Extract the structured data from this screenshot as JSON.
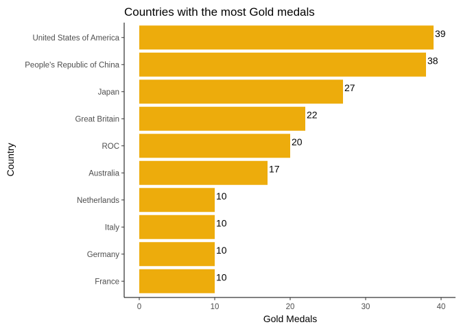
{
  "chart_data": {
    "type": "bar",
    "orientation": "horizontal",
    "title": "Countries with the most Gold medals",
    "xlabel": "Gold Medals",
    "ylabel": "Country",
    "categories": [
      "United States of America",
      "People's Republic of China",
      "Japan",
      "Great Britain",
      "ROC",
      "Australia",
      "Netherlands",
      "Italy",
      "Germany",
      "France"
    ],
    "values": [
      39,
      38,
      27,
      22,
      20,
      17,
      10,
      10,
      10,
      10
    ],
    "xlim": [
      0,
      40
    ],
    "x_ticks": [
      0,
      10,
      20,
      30,
      40
    ],
    "grid": false,
    "bar_color": "#EDAC0C"
  }
}
